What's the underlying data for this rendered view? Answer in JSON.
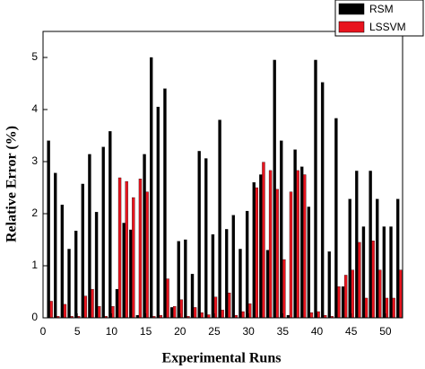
{
  "chart_data": {
    "type": "grouped-bar",
    "x_label": "Experimental Runs",
    "y_label": "Relative Error (%)",
    "x": [
      1,
      2,
      3,
      4,
      5,
      6,
      7,
      8,
      9,
      10,
      11,
      12,
      13,
      14,
      15,
      16,
      17,
      18,
      19,
      20,
      21,
      22,
      23,
      24,
      25,
      26,
      27,
      28,
      29,
      30,
      31,
      32,
      33,
      34,
      35,
      36,
      37,
      38,
      39,
      40,
      41,
      42,
      43,
      44,
      45,
      46,
      47,
      48,
      49,
      50,
      51,
      52
    ],
    "series": [
      {
        "name": "RSM",
        "color": "#000000",
        "values": [
          3.4,
          2.78,
          2.17,
          1.32,
          1.67,
          2.57,
          3.14,
          2.03,
          3.28,
          3.58,
          0.55,
          1.82,
          1.69,
          0.05,
          3.14,
          5.0,
          4.05,
          4.4,
          0.2,
          1.47,
          1.5,
          0.84,
          3.2,
          3.06,
          1.6,
          3.8,
          1.7,
          1.97,
          1.32,
          2.05,
          2.6,
          2.75,
          1.3,
          4.95,
          3.4,
          0.05,
          3.23,
          2.9,
          2.13,
          4.95,
          4.52,
          1.27,
          3.83,
          0.6,
          2.28,
          2.82,
          1.75,
          2.82,
          2.28,
          1.75,
          1.75,
          2.28
        ]
      },
      {
        "name": "LSSVM",
        "color": "#e8141e",
        "values": [
          0.32,
          0.03,
          0.26,
          0.03,
          0.03,
          0.42,
          0.55,
          0.22,
          0.03,
          0.22,
          2.69,
          2.62,
          2.31,
          2.67,
          2.42,
          0.03,
          0.05,
          0.75,
          0.22,
          0.35,
          0.03,
          0.2,
          0.1,
          0.06,
          0.4,
          0.15,
          0.48,
          0.05,
          0.12,
          0.27,
          2.5,
          2.99,
          2.83,
          2.47,
          1.12,
          2.42,
          2.83,
          2.75,
          0.1,
          0.12,
          0.05,
          0.03,
          0.6,
          0.82,
          0.92,
          1.45,
          0.38,
          1.48,
          0.92,
          0.38,
          0.38,
          0.92
        ]
      }
    ],
    "xlim": [
      0,
      52.5
    ],
    "xticks": [
      0,
      5,
      10,
      15,
      20,
      25,
      30,
      35,
      40,
      45,
      50
    ],
    "ylim": [
      0,
      5.5
    ],
    "yticks": [
      0,
      1,
      2,
      3,
      4,
      5
    ],
    "legend": "top-right"
  }
}
